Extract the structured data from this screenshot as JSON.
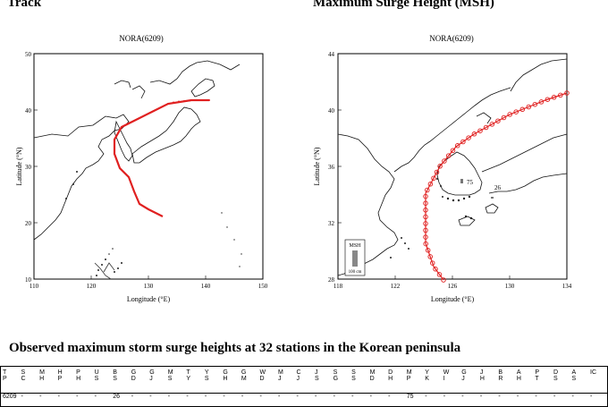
{
  "headings": {
    "track": "Track",
    "msh": "Maximum Surge Height (MSH)",
    "observed": "Observed maximum storm surge heights at 32 stations in the Korean peninsula"
  },
  "track_map": {
    "title": "NORA(6209)",
    "xlabel": "Longitude (°E)",
    "ylabel": "Latitude (°N)",
    "xticks": [
      "110",
      "120",
      "130",
      "140",
      "150"
    ],
    "yticks": [
      "50",
      "40",
      "30",
      "20",
      "10"
    ],
    "track_color": "#e02020"
  },
  "msh_map": {
    "title": "NORA(6209)",
    "xlabel": "Longitude (°E)",
    "ylabel": "Latitude (°N)",
    "xticks": [
      "118",
      "122",
      "126",
      "130",
      "134"
    ],
    "yticks": [
      "44",
      "40",
      "36",
      "32",
      "28"
    ],
    "legend_title": "MSH",
    "legend_scale": "100 cm",
    "surge_labels": [
      "75",
      "26"
    ],
    "track_color": "#e02020"
  },
  "table": {
    "columns": [
      [
        "T",
        "P"
      ],
      [
        "S",
        "C"
      ],
      [
        "M",
        "H"
      ],
      [
        "H",
        "P"
      ],
      [
        "P",
        "H"
      ],
      [
        "U",
        "S"
      ],
      [
        "B",
        "S"
      ],
      [
        "G",
        "D"
      ],
      [
        "G",
        "J"
      ],
      [
        "M",
        "S"
      ],
      [
        "T",
        "Y"
      ],
      [
        "Y",
        "S"
      ],
      [
        "G",
        "H"
      ],
      [
        "G",
        "M"
      ],
      [
        "W",
        "D"
      ],
      [
        "M",
        "J"
      ],
      [
        "C",
        "J"
      ],
      [
        "J",
        "S"
      ],
      [
        "S",
        "G"
      ],
      [
        "S",
        "S"
      ],
      [
        "M",
        "D"
      ],
      [
        "D",
        "H"
      ],
      [
        "M",
        "P"
      ],
      [
        "Y",
        "K"
      ],
      [
        "W",
        "I"
      ],
      [
        "G",
        "J"
      ],
      [
        "J",
        "H"
      ],
      [
        "B",
        "R"
      ],
      [
        "A",
        "H"
      ],
      [
        "P",
        "T"
      ],
      [
        "D",
        "S"
      ],
      [
        "A",
        "S"
      ],
      [
        "IC",
        ""
      ]
    ],
    "row": [
      "6209",
      "-",
      "-",
      "-",
      "-",
      "-",
      "26",
      "-",
      "-",
      "-",
      "-",
      "-",
      "-",
      "-",
      "-",
      "-",
      "-",
      "-",
      "-",
      "-",
      "-",
      "-",
      "75",
      "-",
      "-",
      "-",
      "-",
      "-",
      "-",
      "-",
      "-",
      "-",
      "-"
    ]
  }
}
